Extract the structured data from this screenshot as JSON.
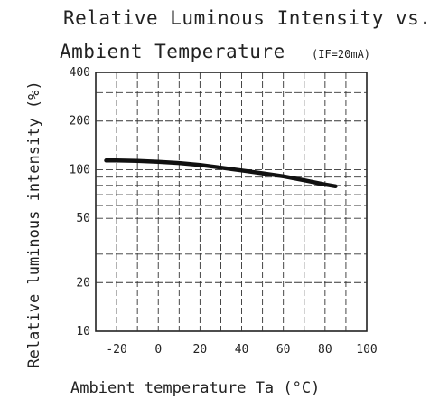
{
  "chart_data": {
    "type": "line",
    "title_line1": "Relative Luminous Intensity vs.",
    "title_line2": "Ambient Temperature",
    "condition": "(IF=20mA)",
    "xlabel": "Ambient temperature Ta (°C)",
    "ylabel": "Relative luminous intensity (%)",
    "xlim": [
      -30,
      100
    ],
    "ylim": [
      10,
      400
    ],
    "y_scale": "log",
    "grid": true,
    "x_ticks": [
      -20,
      0,
      20,
      40,
      60,
      80,
      100
    ],
    "y_ticks": [
      10,
      20,
      50,
      100,
      200,
      400
    ],
    "series": [
      {
        "color": "#111111",
        "x": [
          -25,
          -20,
          -10,
          0,
          10,
          20,
          30,
          40,
          50,
          60,
          70,
          80,
          85
        ],
        "y": [
          114,
          114,
          113.5,
          112,
          110,
          107,
          103,
          99,
          95,
          91,
          86,
          81,
          79
        ]
      }
    ]
  }
}
